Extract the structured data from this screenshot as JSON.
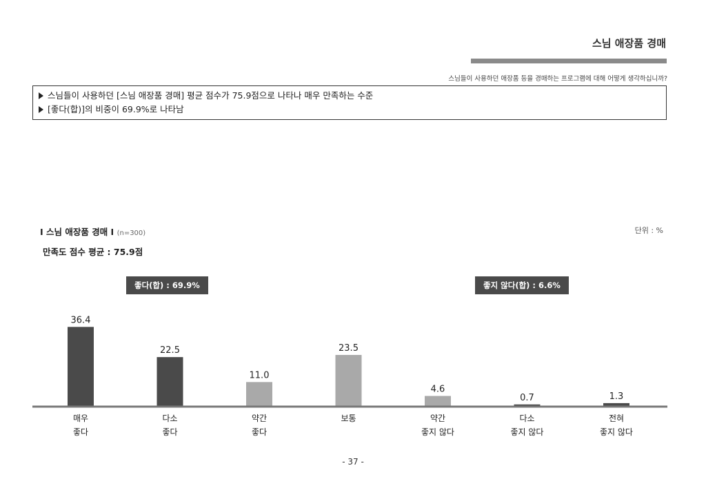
{
  "header": {
    "title": "스님 애장품 경매",
    "question": "스님들이 사용하던 애장품 등을 경매하는 프로그램에 대해 어떻게 생각하십니까?"
  },
  "summary": {
    "lines": [
      "스님들이 사용하던 [스님 애장품 경매] 평균 점수가 75.9점으로 나타나 매우 만족하는 수준",
      "[좋다(합)]의 비중이 69.9%로 나타남"
    ]
  },
  "chart_title": {
    "main": "I 스님 애장품 경매 I",
    "n": "(n=300)"
  },
  "unit": "단위 : %",
  "average": "만족도 점수 평균 : 75.9점",
  "groups": {
    "positive": "좋다(합) : 69.9%",
    "negative": "좋지 않다(합) : 6.6%"
  },
  "colors": {
    "dark_bar": "#4a4a4a",
    "light_bar": "#a9a9a9",
    "baseline": "#777777"
  },
  "chart_data": {
    "type": "bar",
    "categories": [
      [
        "매우",
        "좋다"
      ],
      [
        "다소",
        "좋다"
      ],
      [
        "약간",
        "좋다"
      ],
      [
        "보통",
        ""
      ],
      [
        "약간",
        "좋지 않다"
      ],
      [
        "다소",
        "좋지 않다"
      ],
      [
        "전혀",
        "좋지 않다"
      ]
    ],
    "values": [
      36.4,
      22.5,
      11.0,
      23.5,
      4.6,
      0.7,
      1.3
    ],
    "value_labels": [
      "36.4",
      "22.5",
      "11.0",
      "23.5",
      "4.6",
      "0.7",
      "1.3"
    ],
    "bar_colors": [
      "#4a4a4a",
      "#4a4a4a",
      "#a9a9a9",
      "#a9a9a9",
      "#a9a9a9",
      "#4a4a4a",
      "#4a4a4a"
    ],
    "ylim": [
      0,
      40
    ],
    "grid": false
  },
  "page_number": "- 37 -"
}
